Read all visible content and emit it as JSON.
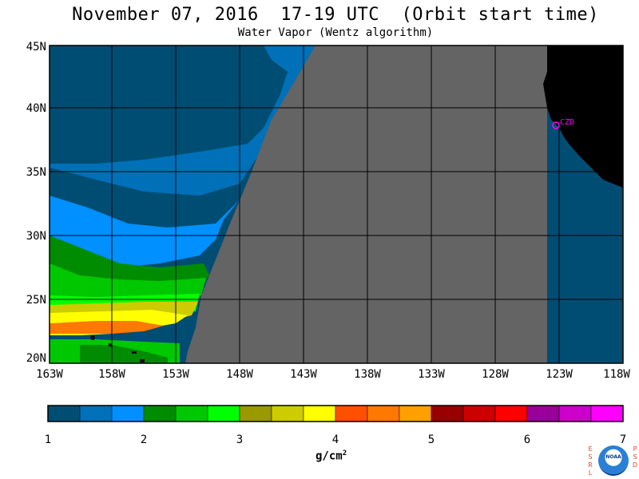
{
  "title": "November 07, 2016  17-19 UTC  (Orbit start time)",
  "subtitle": "Water Vapor (Wentz algorithm)",
  "map": {
    "lat_labels": [
      "45N",
      "40N",
      "35N",
      "30N",
      "25N",
      "20N"
    ],
    "lon_labels": [
      "163W",
      "158W",
      "153W",
      "148W",
      "143W",
      "138W",
      "133W",
      "128W",
      "123W",
      "118W"
    ],
    "marker_label": "CZD",
    "colors": {
      "no_data": "#646464",
      "land": "#000000",
      "marker": "#ff00ff"
    }
  },
  "colorbar": {
    "tick_labels": [
      "1",
      "2",
      "3",
      "4",
      "5",
      "6",
      "7"
    ],
    "units": "g/cm",
    "units_sup": "2",
    "colors": [
      "#004d73",
      "#0070b8",
      "#0090ff",
      "#008c00",
      "#00c800",
      "#00ff00",
      "#999900",
      "#cccc00",
      "#ffff00",
      "#ff5000",
      "#ff7800",
      "#ffa000",
      "#990000",
      "#cc0000",
      "#ff0000",
      "#990099",
      "#cc00cc",
      "#ff00ff"
    ]
  },
  "logo": {
    "left_letters": [
      "E",
      "S",
      "R",
      "L"
    ],
    "right_letters": [
      "P",
      "S",
      "D"
    ],
    "text": "NOAA"
  }
}
